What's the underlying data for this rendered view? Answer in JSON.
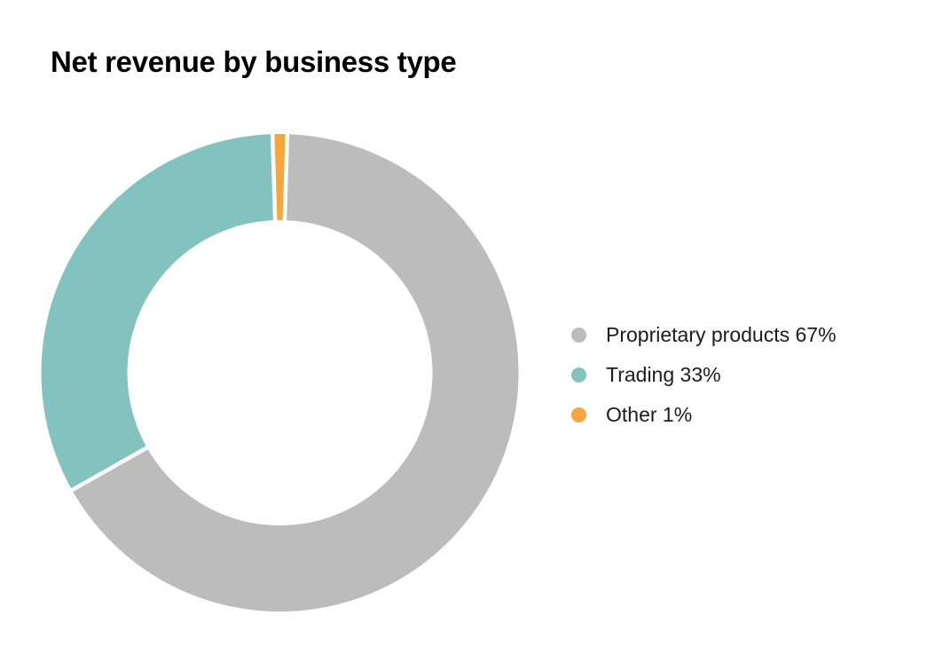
{
  "title": "Net revenue by business type",
  "chart_data": {
    "type": "pie",
    "subtype": "donut",
    "title": "Net revenue by business type",
    "categories": [
      "Proprietary products",
      "Trading",
      "Other"
    ],
    "values": [
      67,
      33,
      1
    ],
    "unit": "%",
    "colors": [
      "#bcbcbc",
      "#82c3c0",
      "#f6a63c"
    ],
    "legend_position": "right",
    "orientation": "clockwise, smallest slice (Other) centered at 12 o'clock",
    "segment_gap_color": "#ffffff",
    "background_color": "#ffffff"
  },
  "legend": {
    "items": [
      {
        "label": "Proprietary products 67%",
        "color": "#bcbcbc"
      },
      {
        "label": "Trading 33%",
        "color": "#82c3c0"
      },
      {
        "label": "Other 1%",
        "color": "#f6a63c"
      }
    ]
  }
}
